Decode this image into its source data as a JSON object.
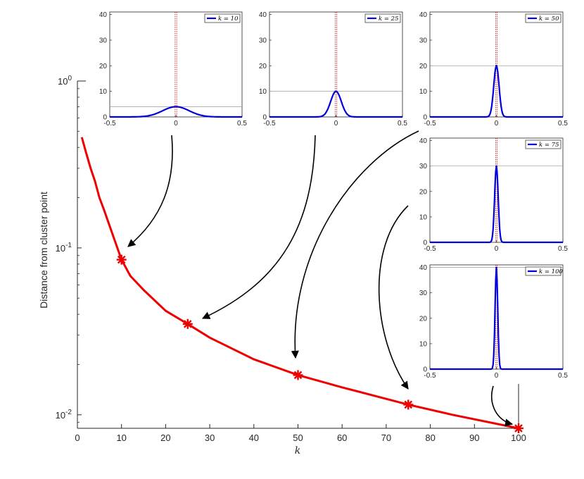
{
  "chart_data": [
    {
      "type": "line",
      "xlabel": "k",
      "ylabel": "Distance from cluster point",
      "yscale": "log",
      "xlim": [
        0,
        100
      ],
      "ylim": [
        0.0083,
        1.0
      ],
      "xticks": [
        0,
        10,
        20,
        30,
        40,
        50,
        60,
        70,
        80,
        90,
        100
      ],
      "yticks": [
        {
          "value": 1.0,
          "base": "10",
          "exp": "0"
        },
        {
          "value": 0.1,
          "base": "10",
          "exp": "-1"
        },
        {
          "value": 0.01,
          "base": "10",
          "exp": "-2"
        }
      ],
      "line_color": "#ee0000",
      "series": [
        {
          "x": [
            1,
            2,
            3,
            4,
            5,
            6,
            8,
            10,
            12,
            15,
            20,
            25,
            30,
            40,
            50,
            60,
            75,
            85,
            100
          ],
          "y": [
            0.46,
            0.37,
            0.3,
            0.25,
            0.2,
            0.17,
            0.12,
            0.085,
            0.068,
            0.056,
            0.042,
            0.035,
            0.029,
            0.0215,
            0.0173,
            0.0146,
            0.0115,
            0.01,
            0.0083
          ]
        }
      ],
      "markers": {
        "x": [
          10,
          25,
          50,
          75,
          100
        ],
        "y": [
          0.085,
          0.035,
          0.0173,
          0.0115,
          0.0083
        ],
        "style": "asterisk",
        "color": "#ee0000"
      }
    },
    {
      "type": "line",
      "legend": "k = 10",
      "legend_k": "10",
      "xlim": [
        -0.5,
        0.5
      ],
      "ylim": [
        0,
        41
      ],
      "xticks": [
        "-0.5",
        "0",
        "0.5"
      ],
      "yticks": [
        "0",
        "10",
        "20",
        "30",
        "40"
      ],
      "peak": 4.0,
      "sigma": 0.1,
      "line_color": "#0000dd",
      "ref_line_color": "#cc0000",
      "arrow_target_k": 10
    },
    {
      "type": "line",
      "legend": "k = 25",
      "legend_k": "25",
      "xlim": [
        -0.5,
        0.5
      ],
      "ylim": [
        0,
        41
      ],
      "xticks": [
        "-0.5",
        "0",
        "0.5"
      ],
      "yticks": [
        "0",
        "10",
        "20",
        "30",
        "40"
      ],
      "peak": 10.0,
      "sigma": 0.04,
      "line_color": "#0000dd",
      "ref_line_color": "#cc0000",
      "arrow_target_k": 25
    },
    {
      "type": "line",
      "legend": "k = 50",
      "legend_k": "50",
      "xlim": [
        -0.5,
        0.5
      ],
      "ylim": [
        0,
        41
      ],
      "xticks": [
        "-0.5",
        "0",
        "0.5"
      ],
      "yticks": [
        "0",
        "10",
        "20",
        "30",
        "40"
      ],
      "peak": 20.0,
      "sigma": 0.02,
      "line_color": "#0000dd",
      "ref_line_color": "#cc0000",
      "arrow_target_k": 50
    },
    {
      "type": "line",
      "legend": "k = 75",
      "legend_k": "75",
      "xlim": [
        -0.5,
        0.5
      ],
      "ylim": [
        0,
        41
      ],
      "xticks": [
        "-0.5",
        "0",
        "0.5"
      ],
      "yticks": [
        "0",
        "10",
        "20",
        "30",
        "40"
      ],
      "peak": 30.0,
      "sigma": 0.0133,
      "line_color": "#0000dd",
      "ref_line_color": "#cc0000",
      "arrow_target_k": 75
    },
    {
      "type": "line",
      "legend": "k = 100",
      "legend_k": "100",
      "xlim": [
        -0.5,
        0.5
      ],
      "ylim": [
        0,
        41
      ],
      "xticks": [
        "-0.5",
        "0",
        "0.5"
      ],
      "yticks": [
        "0",
        "10",
        "20",
        "30",
        "40"
      ],
      "peak": 40.0,
      "sigma": 0.01,
      "line_color": "#0000dd",
      "ref_line_color": "#cc0000",
      "arrow_target_k": 100
    }
  ]
}
